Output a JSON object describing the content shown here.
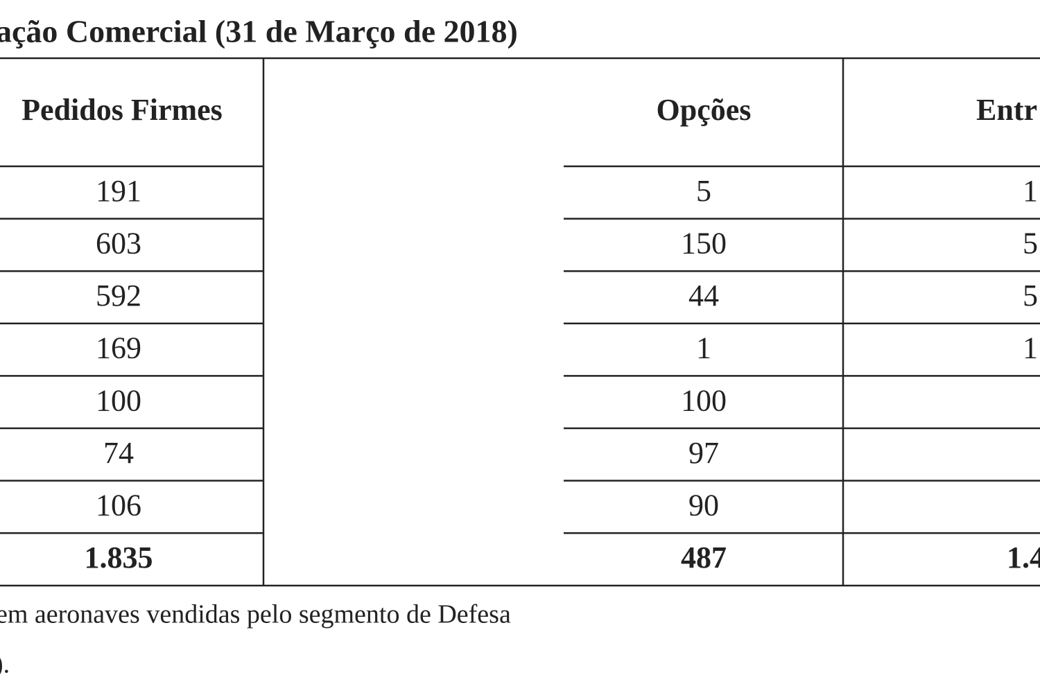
{
  "header": {
    "title": "ação Comercial (31 de Março de 2018)"
  },
  "table": {
    "columns": [
      "Pedidos Firmes",
      "Opções",
      "Entr"
    ],
    "rows": [
      [
        "191",
        "5",
        "1"
      ],
      [
        "603",
        "150",
        "5"
      ],
      [
        "592",
        "44",
        "5"
      ],
      [
        "169",
        "1",
        "1"
      ],
      [
        "100",
        "100"
      ],
      [
        "74",
        "97"
      ],
      [
        "106",
        "90"
      ]
    ],
    "total": [
      "1.835",
      "487",
      "1.4"
    ]
  },
  "footnotes": [
    "em aeronaves vendidas pelo segmento de Defesa",
    ")."
  ]
}
